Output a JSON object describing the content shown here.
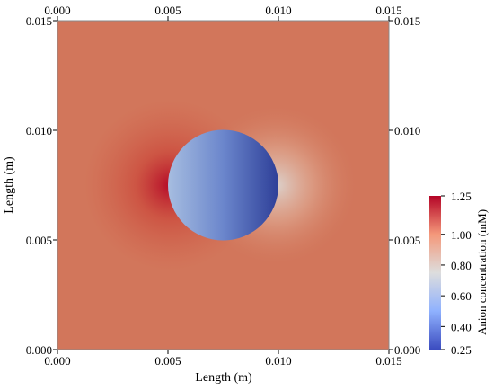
{
  "chart_data": {
    "type": "heatmap",
    "xlabel": "Length (m)",
    "ylabel": "Length (m)",
    "xlim": [
      0.0,
      0.015
    ],
    "ylim": [
      0.0,
      0.015
    ],
    "x_ticks": [
      {
        "value": 0.0,
        "label": "0.000"
      },
      {
        "value": 0.005,
        "label": "0.005"
      },
      {
        "value": 0.01,
        "label": "0.010"
      },
      {
        "value": 0.015,
        "label": "0.015"
      }
    ],
    "y_ticks": [
      {
        "value": 0.0,
        "label": "0.000"
      },
      {
        "value": 0.005,
        "label": "0.005"
      },
      {
        "value": 0.01,
        "label": "0.010"
      },
      {
        "value": 0.015,
        "label": "0.015"
      }
    ],
    "ticks_on_all_sides": true,
    "field": {
      "background_level": 1.0,
      "obstacle": {
        "center": [
          0.0075,
          0.0075
        ],
        "radius": 0.0025
      }
    },
    "colorbar": {
      "title": "Anion concentration (mM)",
      "range": [
        0.25,
        1.25
      ],
      "ticks": [
        {
          "value": 0.25,
          "label": "0.25"
        },
        {
          "value": 0.4,
          "label": "0.40"
        },
        {
          "value": 0.6,
          "label": "0.60"
        },
        {
          "value": 0.8,
          "label": "0.80"
        },
        {
          "value": 1.0,
          "label": "1.00"
        },
        {
          "value": 1.25,
          "label": "1.25"
        }
      ],
      "colormap_stops": [
        {
          "value": 0.25,
          "color": "#3b4cc0"
        },
        {
          "value": 0.5,
          "color": "#8fb1fe"
        },
        {
          "value": 0.75,
          "color": "#dddddd"
        },
        {
          "value": 1.0,
          "color": "#f4987a"
        },
        {
          "value": 1.25,
          "color": "#b40426"
        }
      ]
    }
  }
}
